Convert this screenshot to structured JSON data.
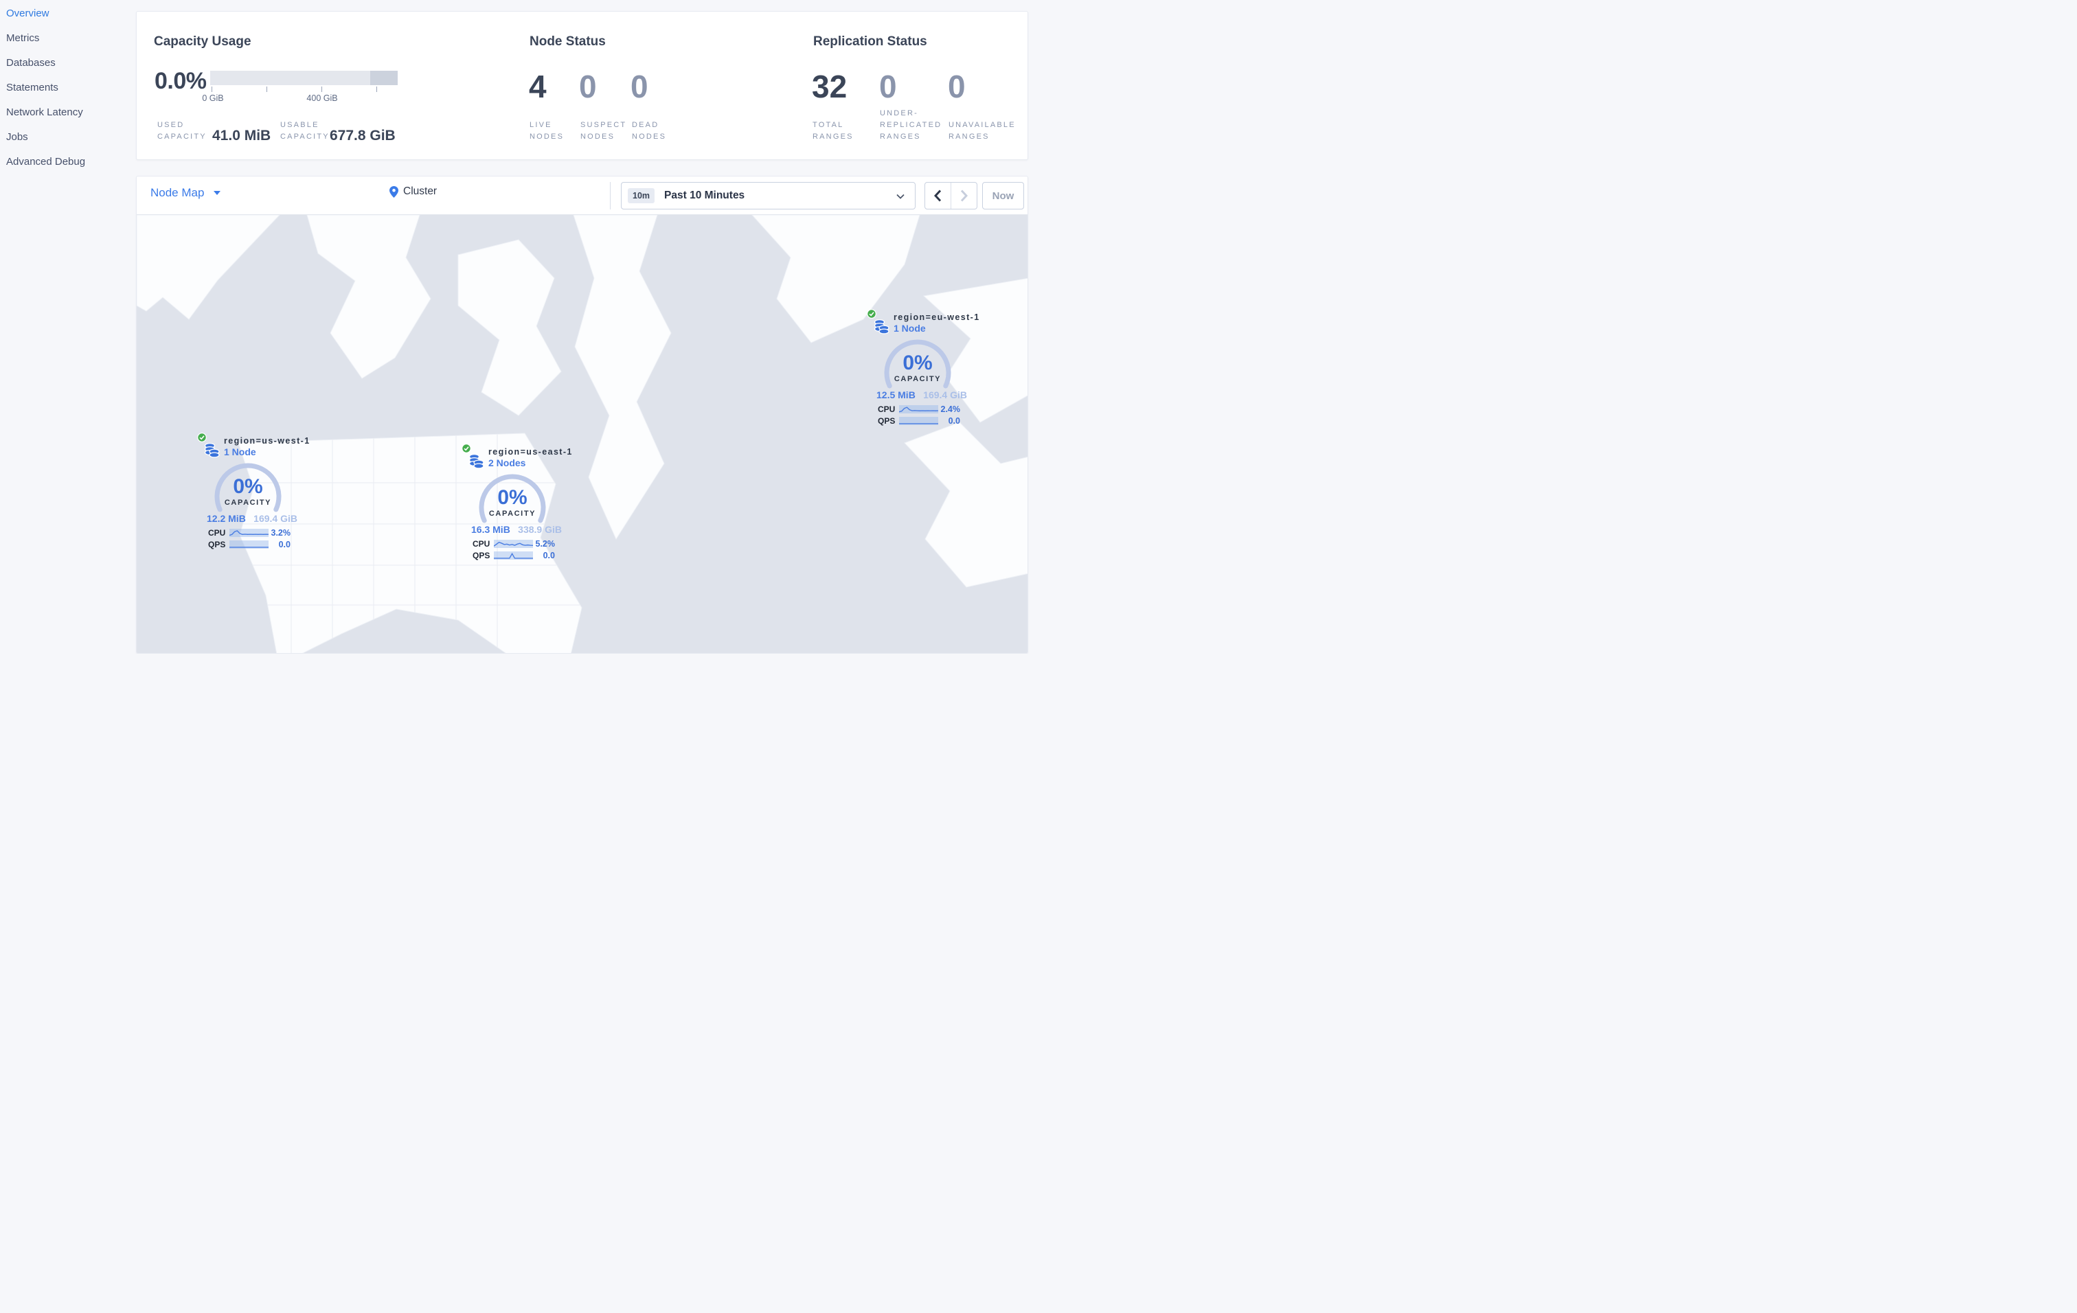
{
  "colors": {
    "accent_blue": "#3b7be8",
    "gauge_blue": "#3b6fd6",
    "light_blue": "#aabfe8",
    "healthy_green": "#45ad4d",
    "dark_navy": "#3b4558",
    "muted_slate": "#8a95ac",
    "map_land": "#dfe3eb",
    "bar_fill": "#e4e7ed",
    "bar_dark_segment": "#ccd2dd"
  },
  "sidebar": {
    "items": [
      {
        "label": "Overview",
        "active": true
      },
      {
        "label": "Metrics",
        "active": false
      },
      {
        "label": "Databases",
        "active": false
      },
      {
        "label": "Statements",
        "active": false
      },
      {
        "label": "Network Latency",
        "active": false
      },
      {
        "label": "Jobs",
        "active": false
      },
      {
        "label": "Advanced Debug",
        "active": false
      }
    ]
  },
  "summary": {
    "capacity": {
      "title": "Capacity Usage",
      "percent": "0.0%",
      "tick_labels": [
        "0 GiB",
        "400 GiB"
      ],
      "stats": [
        {
          "label": "USED\nCAPACITY",
          "value": "41.0 MiB"
        },
        {
          "label": "USABLE\nCAPACITY",
          "value": "677.8 GiB"
        }
      ]
    },
    "nodes": {
      "title": "Node Status",
      "stats": [
        {
          "value": "4",
          "label": "LIVE\nNODES",
          "dim": false
        },
        {
          "value": "0",
          "label": "SUSPECT\nNODES",
          "dim": true
        },
        {
          "value": "0",
          "label": "DEAD\nNODES",
          "dim": true
        }
      ]
    },
    "replication": {
      "title": "Replication Status",
      "stats": [
        {
          "value": "32",
          "label": "TOTAL\nRANGES",
          "dim": false
        },
        {
          "value": "0",
          "label": "UNDER-\nREPLICATED\nRANGES",
          "dim": true
        },
        {
          "value": "0",
          "label": "UNAVAILABLE\nRANGES",
          "dim": true
        }
      ]
    }
  },
  "toolbar": {
    "view_selector": "Node Map",
    "breadcrumb": "Cluster",
    "time_badge": "10m",
    "time_label": "Past 10 Minutes",
    "now_label": "Now"
  },
  "map": {
    "markers": [
      {
        "region_label": "region=eu-west-1",
        "nodes_label": "1 Node",
        "capacity_percent": "0%",
        "capacity_caption": "CAPACITY",
        "used": "12.5 MiB",
        "usable": "169.4 GiB",
        "cpu_label": "CPU",
        "cpu_value": "2.4%",
        "qps_label": "QPS",
        "qps_value": "0.0",
        "cpu_spark": [
          0.1,
          0.22,
          0.72,
          0.92,
          0.48,
          0.3,
          0.33,
          0.3,
          0.28,
          0.31,
          0.28,
          0.3,
          0.29,
          0.31,
          0.28,
          0.3
        ],
        "qps_spark": [
          0.07,
          0.07,
          0.07,
          0.07,
          0.07,
          0.07,
          0.07,
          0.07,
          0.07,
          0.07,
          0.07,
          0.07,
          0.07,
          0.07,
          0.07,
          0.07
        ]
      },
      {
        "region_label": "region=us-west-1",
        "nodes_label": "1 Node",
        "capacity_percent": "0%",
        "capacity_caption": "CAPACITY",
        "used": "12.2 MiB",
        "usable": "169.4 GiB",
        "cpu_label": "CPU",
        "cpu_value": "3.2%",
        "qps_label": "QPS",
        "qps_value": "0.0",
        "cpu_spark": [
          0.12,
          0.28,
          0.78,
          0.95,
          0.45,
          0.28,
          0.32,
          0.28,
          0.3,
          0.28,
          0.31,
          0.28,
          0.3,
          0.28,
          0.31,
          0.29
        ],
        "qps_spark": [
          0.07,
          0.07,
          0.07,
          0.07,
          0.07,
          0.07,
          0.07,
          0.07,
          0.07,
          0.07,
          0.07,
          0.07,
          0.07,
          0.07,
          0.07,
          0.07
        ]
      },
      {
        "region_label": "region=us-east-1",
        "nodes_label": "2 Nodes",
        "capacity_percent": "0%",
        "capacity_caption": "CAPACITY",
        "used": "16.3 MiB",
        "usable": "338.9 GiB",
        "cpu_label": "CPU",
        "cpu_value": "5.2%",
        "qps_label": "QPS",
        "qps_value": "0.0",
        "cpu_spark": [
          0.15,
          0.5,
          0.85,
          0.68,
          0.45,
          0.52,
          0.35,
          0.46,
          0.3,
          0.52,
          0.66,
          0.4,
          0.3,
          0.36,
          0.3,
          0.28
        ],
        "qps_spark": [
          0.07,
          0.07,
          0.07,
          0.07,
          0.07,
          0.07,
          0.07,
          0.9,
          0.07,
          0.07,
          0.07,
          0.07,
          0.07,
          0.07,
          0.07,
          0.07
        ]
      }
    ]
  }
}
